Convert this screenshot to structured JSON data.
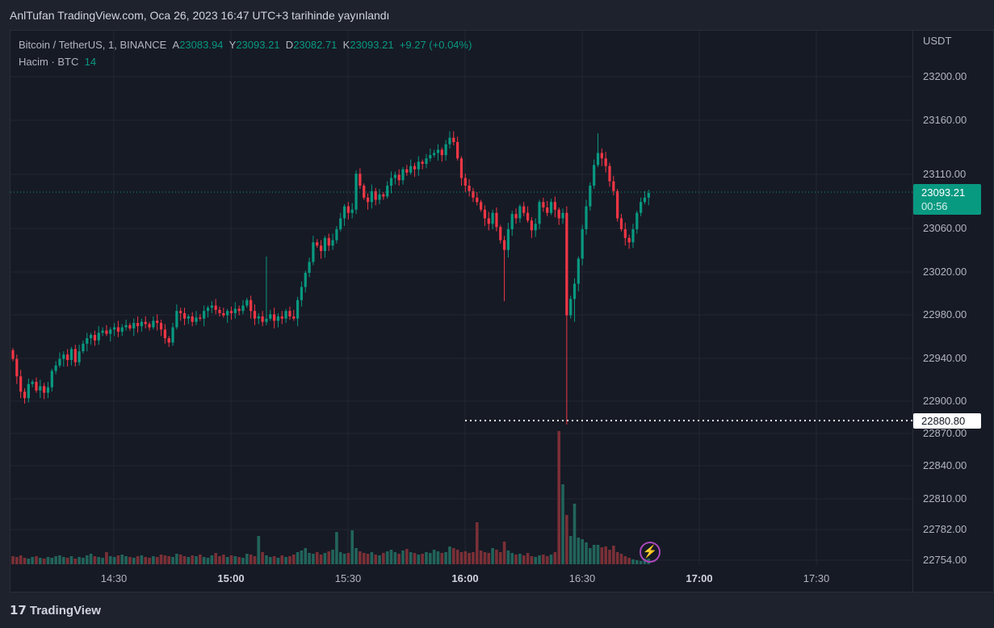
{
  "published": "AnlTufan TradingView.com, Oca 26, 2023 16:47 UTC+3 tarihinde yayınlandı",
  "legend": {
    "symbol": "Bitcoin / TetherUS, 1, BINANCE",
    "o_label": "A",
    "o": "23083.94",
    "h_label": "Y",
    "h": "23093.21",
    "l_label": "D",
    "l": "23082.71",
    "c_label": "K",
    "c": "23093.21",
    "change": "+9.27 (+0.04%)",
    "volume_label": "Hacim · BTC",
    "volume": "14"
  },
  "currency": "USDT",
  "current_price": "23093.21",
  "countdown": "00:56",
  "low_marker": "22880.80",
  "price_ticks": [
    "23200.00",
    "23160.00",
    "23110.00",
    "23060.00",
    "23020.00",
    "22980.00",
    "22940.00",
    "22900.00",
    "22870.00",
    "22840.00",
    "22810.00",
    "22782.00",
    "22754.00"
  ],
  "time_ticks": [
    {
      "label": "14:30",
      "bold": false
    },
    {
      "label": "15:00",
      "bold": true
    },
    {
      "label": "15:30",
      "bold": false
    },
    {
      "label": "16:00",
      "bold": true
    },
    {
      "label": "16:30",
      "bold": false
    },
    {
      "label": "17:00",
      "bold": true
    },
    {
      "label": "17:30",
      "bold": false
    }
  ],
  "brand": "TradingView",
  "colors": {
    "up": "#089981",
    "down": "#f23645",
    "up_vol": "#22645b",
    "down_vol": "#7a3036"
  },
  "chart_data": {
    "type": "candlestick",
    "interval": "1m",
    "start": "14:04",
    "ylim": [
      22754,
      23230
    ],
    "closes": [
      22941,
      22925,
      22911,
      22905,
      22918,
      22920,
      22912,
      22916,
      22910,
      22915,
      22930,
      22935,
      22941,
      22945,
      22940,
      22950,
      22938,
      22948,
      22955,
      22960,
      22963,
      22958,
      22965,
      22967,
      22964,
      22968,
      22970,
      22966,
      22970,
      22972,
      22969,
      22974,
      22971,
      22975,
      22973,
      22970,
      22976,
      22974,
      22968,
      22960,
      22956,
      22970,
      22985,
      22983,
      22978,
      22980,
      22975,
      22979,
      22978,
      22985,
      22988,
      22990,
      22986,
      22983,
      22981,
      22985,
      22983,
      22987,
      22985,
      22990,
      22995,
      22985,
      22978,
      22980,
      22975,
      22978,
      22982,
      22976,
      22980,
      22978,
      22985,
      22980,
      22978,
      22995,
      23007,
      23020,
      23030,
      23048,
      23045,
      23040,
      23052,
      23045,
      23050,
      23060,
      23070,
      23081,
      23075,
      23078,
      23111,
      23100,
      23089,
      23085,
      23095,
      23087,
      23092,
      23090,
      23100,
      23107,
      23110,
      23105,
      23115,
      23112,
      23118,
      23115,
      23122,
      23120,
      23125,
      23128,
      23130,
      23133,
      23128,
      23138,
      23144,
      23140,
      23125,
      23107,
      23100,
      23095,
      23089,
      23085,
      23078,
      23070,
      23065,
      23075,
      23062,
      23050,
      23041,
      23060,
      23074,
      23070,
      23081,
      23075,
      23068,
      23059,
      23065,
      23085,
      23080,
      23075,
      23085,
      23078,
      23070,
      23075,
      22981,
      22996,
      23010,
      23033,
      23060,
      23081,
      23100,
      23119,
      23130,
      23125,
      23118,
      23104,
      23095,
      23070,
      23060,
      23052,
      23048,
      23060,
      23075,
      23085,
      23089,
      23093.21
    ],
    "volumes": [
      20,
      18,
      22,
      16,
      14,
      18,
      20,
      16,
      14,
      18,
      16,
      20,
      22,
      18,
      16,
      20,
      14,
      18,
      16,
      22,
      26,
      20,
      18,
      16,
      30,
      20,
      18,
      22,
      24,
      20,
      18,
      16,
      20,
      22,
      18,
      16,
      20,
      18,
      24,
      22,
      20,
      18,
      26,
      24,
      20,
      18,
      22,
      20,
      24,
      18,
      16,
      22,
      28,
      20,
      24,
      18,
      22,
      20,
      18,
      16,
      26,
      24,
      20,
      70,
      30,
      22,
      18,
      20,
      16,
      22,
      18,
      20,
      24,
      30,
      34,
      40,
      28,
      26,
      30,
      24,
      28,
      32,
      36,
      80,
      30,
      26,
      28,
      84,
      40,
      32,
      28,
      26,
      30,
      24,
      22,
      28,
      32,
      36,
      30,
      26,
      34,
      38,
      30,
      28,
      24,
      26,
      30,
      28,
      36,
      32,
      28,
      30,
      44,
      40,
      36,
      30,
      32,
      28,
      30,
      104,
      34,
      30,
      28,
      40,
      36,
      30,
      56,
      34,
      28,
      24,
      26,
      22,
      28,
      20,
      18,
      22,
      24,
      20,
      24,
      30,
      330,
      198,
      122,
      70,
      150,
      66,
      62,
      54,
      40,
      48,
      48,
      42,
      44,
      36,
      46,
      30,
      26,
      20,
      16,
      12,
      10,
      8,
      14,
      14
    ],
    "wicks": {
      "65": {
        "high": 23035
      },
      "126": {
        "low": 22994
      },
      "142": {
        "low": 22880.8
      },
      "113": {
        "high": 23150
      },
      "150": {
        "high": 23148
      },
      "144": {
        "low": 22975
      }
    }
  }
}
